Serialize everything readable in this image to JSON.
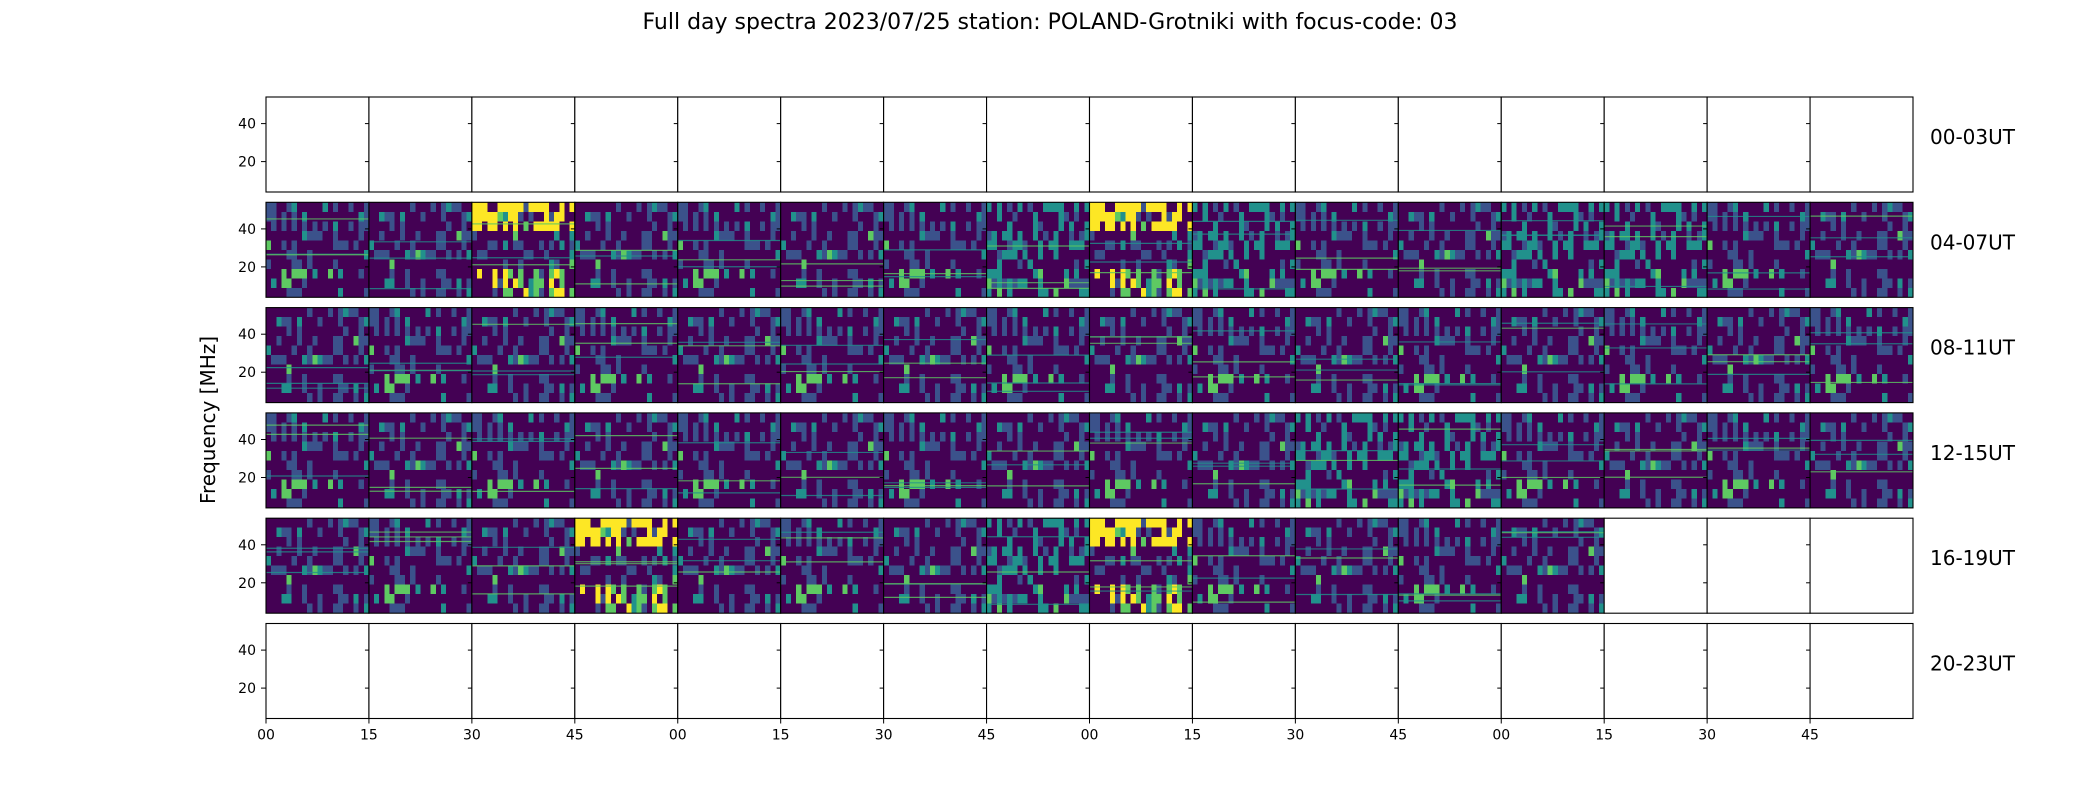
{
  "chart_data": {
    "type": "heatmap",
    "title": "Full day spectra 2023/07/25 station: POLAND-Grotniki with focus-code: 03",
    "ylabel": "Frequency [MHz]",
    "xlabel": "",
    "ytick_labels": [
      "40",
      "20"
    ],
    "xtick_labels": [
      "00",
      "15",
      "30",
      "45",
      "00",
      "15",
      "30",
      "45",
      "00",
      "15",
      "30",
      "45",
      "00",
      "15",
      "30",
      "45"
    ],
    "panels_per_row": 16,
    "colormap": [
      "#440154",
      "#3b528b",
      "#21918c",
      "#5ec962",
      "#fde725"
    ],
    "rows": [
      {
        "label": "00-03UT",
        "filled": [
          false,
          false,
          false,
          false,
          false,
          false,
          false,
          false,
          false,
          false,
          false,
          false,
          false,
          false,
          false,
          false
        ]
      },
      {
        "label": "04-07UT",
        "filled": [
          true,
          true,
          true,
          true,
          true,
          true,
          true,
          true,
          true,
          true,
          true,
          true,
          true,
          true,
          true,
          true
        ]
      },
      {
        "label": "08-11UT",
        "filled": [
          true,
          true,
          true,
          true,
          true,
          true,
          true,
          true,
          true,
          true,
          true,
          true,
          true,
          true,
          true,
          true
        ]
      },
      {
        "label": "12-15UT",
        "filled": [
          true,
          true,
          true,
          true,
          true,
          true,
          true,
          true,
          true,
          true,
          true,
          true,
          true,
          true,
          true,
          true
        ]
      },
      {
        "label": "16-19UT",
        "filled": [
          true,
          true,
          true,
          true,
          true,
          true,
          true,
          true,
          true,
          true,
          true,
          true,
          true,
          false,
          false,
          false
        ]
      },
      {
        "label": "20-23UT",
        "filled": [
          false,
          false,
          false,
          false,
          false,
          false,
          false,
          false,
          false,
          false,
          false,
          false,
          false,
          false,
          false,
          false
        ]
      }
    ],
    "bright_panels": [
      {
        "row": 1,
        "panel": 2,
        "intensity": "high"
      },
      {
        "row": 1,
        "panel": 7,
        "intensity": "medium"
      },
      {
        "row": 1,
        "panel": 8,
        "intensity": "high"
      },
      {
        "row": 1,
        "panel": 9,
        "intensity": "medium"
      },
      {
        "row": 1,
        "panel": 12,
        "intensity": "medium"
      },
      {
        "row": 1,
        "panel": 13,
        "intensity": "medium"
      },
      {
        "row": 3,
        "panel": 10,
        "intensity": "medium"
      },
      {
        "row": 3,
        "panel": 11,
        "intensity": "medium"
      },
      {
        "row": 4,
        "panel": 3,
        "intensity": "high"
      },
      {
        "row": 4,
        "panel": 7,
        "intensity": "medium"
      },
      {
        "row": 4,
        "panel": 8,
        "intensity": "high"
      }
    ]
  }
}
